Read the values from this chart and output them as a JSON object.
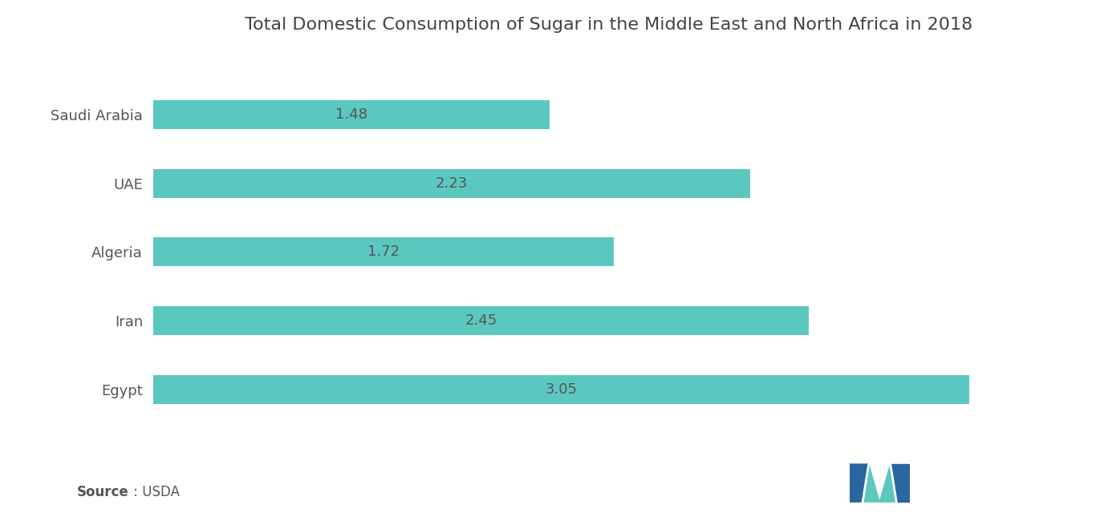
{
  "title": "Total Domestic Consumption of Sugar in the Middle East and North Africa in 2018",
  "categories": [
    "Saudi Arabia",
    "UAE",
    "Algeria",
    "Iran",
    "Egypt"
  ],
  "values": [
    1.48,
    2.23,
    1.72,
    2.45,
    3.05
  ],
  "bar_color": "#5BC8C0",
  "label_color": "#555555",
  "title_color": "#444444",
  "background_color": "#ffffff",
  "figsize": [
    13.66,
    6.55
  ],
  "dpi": 100,
  "xlim": [
    0,
    3.4
  ],
  "title_fontsize": 16,
  "label_fontsize": 13,
  "bar_label_fontsize": 13,
  "source_fontsize": 12,
  "bar_height": 0.42
}
